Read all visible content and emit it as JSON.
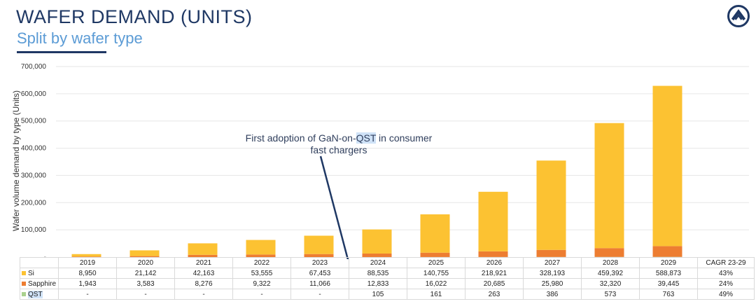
{
  "header": {
    "title": "WAFER DEMAND (UNITS)",
    "subtitle": "Split by wafer type"
  },
  "annotation": {
    "before": "First adoption of GaN-on-",
    "highlight": "QST",
    "after": " in consumer",
    "line2": "fast chargers"
  },
  "chart_data": {
    "type": "bar",
    "stacked": true,
    "ylabel": "Wafer volume demand by type (Units)",
    "ylim": [
      0,
      700000
    ],
    "yticks": [
      "-",
      "100,000",
      "200,000",
      "300,000",
      "400,000",
      "500,000",
      "600,000",
      "700,000"
    ],
    "grid": true,
    "categories": [
      "2019",
      "2020",
      "2021",
      "2022",
      "2023",
      "2024",
      "2025",
      "2026",
      "2027",
      "2028",
      "2029"
    ],
    "series": [
      {
        "name": "Si",
        "color": "#fcc232",
        "values": [
          8950,
          21142,
          42163,
          53555,
          67453,
          88535,
          140755,
          218921,
          328193,
          459392,
          588873
        ],
        "labels": [
          "8,950",
          "21,142",
          "42,163",
          "53,555",
          "67,453",
          "88,535",
          "140,755",
          "218,921",
          "328,193",
          "459,392",
          "588,873"
        ],
        "cagr": "43%"
      },
      {
        "name": "Sapphire",
        "color": "#ed7d31",
        "values": [
          1943,
          3583,
          8276,
          9322,
          11066,
          12833,
          16022,
          20685,
          25980,
          32320,
          39445
        ],
        "labels": [
          "1,943",
          "3,583",
          "8,276",
          "9,322",
          "11,066",
          "12,833",
          "16,022",
          "20,685",
          "25,980",
          "32,320",
          "39,445"
        ],
        "cagr": "24%"
      },
      {
        "name": "QST",
        "color": "#a9d18e",
        "values": [
          0,
          0,
          0,
          0,
          0,
          105,
          161,
          263,
          386,
          573,
          763
        ],
        "labels": [
          "-",
          "-",
          "-",
          "-",
          "-",
          "105",
          "161",
          "263",
          "386",
          "573",
          "763"
        ],
        "cagr": "49%"
      }
    ],
    "cagr_header": "CAGR 23-29"
  }
}
